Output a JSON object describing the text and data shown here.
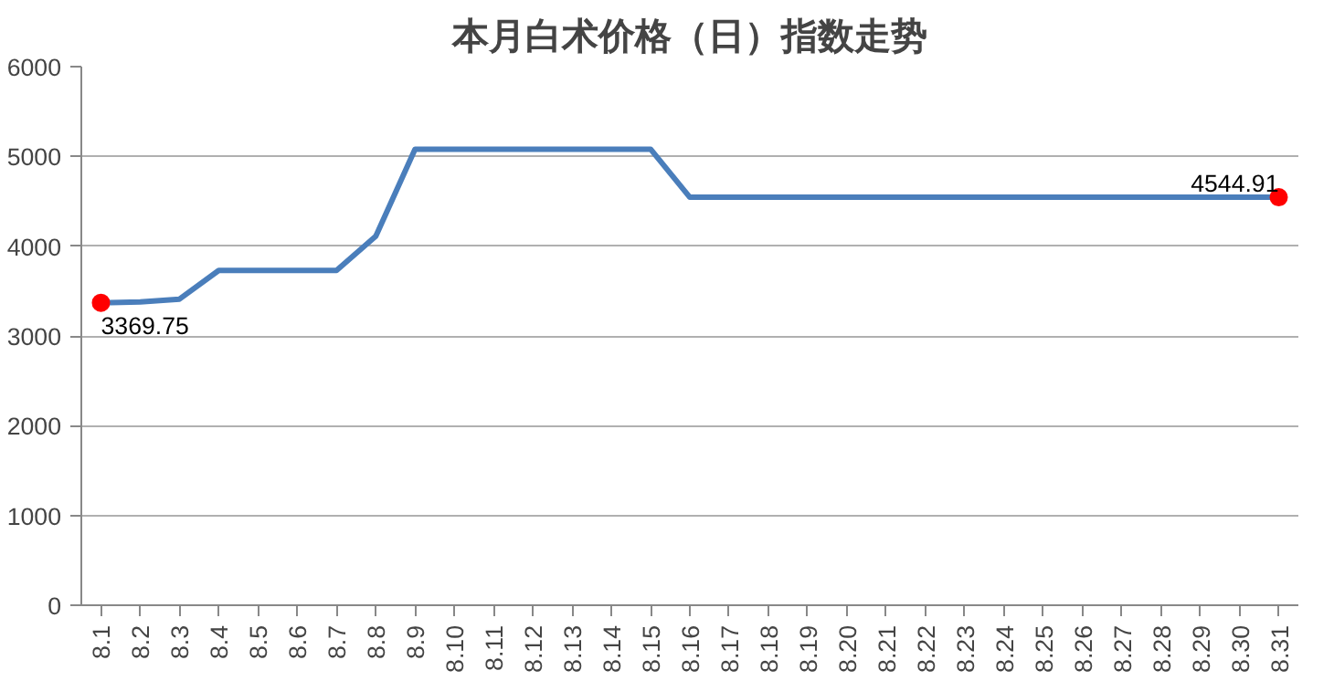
{
  "chart_data": {
    "type": "line",
    "title": "本月白术价格（日）指数走势",
    "categories": [
      "8.1",
      "8.2",
      "8.3",
      "8.4",
      "8.5",
      "8.6",
      "8.7",
      "8.8",
      "8.9",
      "8.10",
      "8.11",
      "8.12",
      "8.13",
      "8.14",
      "8.15",
      "8.16",
      "8.17",
      "8.18",
      "8.19",
      "8.20",
      "8.21",
      "8.22",
      "8.23",
      "8.24",
      "8.25",
      "8.26",
      "8.27",
      "8.28",
      "8.29",
      "8.30",
      "8.31"
    ],
    "series": [
      {
        "color": "#4a7ebb",
        "values": [
          3369.75,
          3380,
          3410,
          3730,
          3730,
          3730,
          3730,
          4110,
          5080,
          5080,
          5080,
          5080,
          5080,
          5080,
          5080,
          4544.91,
          4544.91,
          4544.91,
          4544.91,
          4544.91,
          4544.91,
          4544.91,
          4544.91,
          4544.91,
          4544.91,
          4544.91,
          4544.91,
          4544.91,
          4544.91,
          4544.91,
          4544.91
        ]
      },
      {
        "type": "scatter",
        "color": "#ff0000",
        "marker": "circle",
        "values": [
          3369.75,
          null,
          null,
          null,
          null,
          null,
          null,
          null,
          null,
          null,
          null,
          null,
          null,
          null,
          null,
          null,
          null,
          null,
          null,
          null,
          null,
          null,
          null,
          null,
          null,
          null,
          null,
          null,
          null,
          null,
          4544.91
        ],
        "value_labels": [
          "3369.75",
          null,
          null,
          null,
          null,
          null,
          null,
          null,
          null,
          null,
          null,
          null,
          null,
          null,
          null,
          null,
          null,
          null,
          null,
          null,
          null,
          null,
          null,
          null,
          null,
          null,
          null,
          null,
          null,
          null,
          "4544.91"
        ]
      }
    ],
    "ylim": [
      0,
      6000
    ],
    "yticks": [
      0,
      1000,
      2000,
      3000,
      4000,
      5000,
      6000
    ],
    "grid": "y"
  }
}
